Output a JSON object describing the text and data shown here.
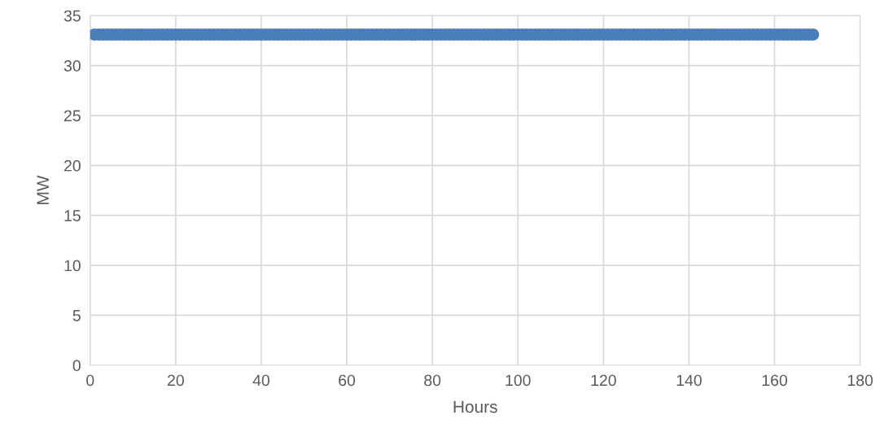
{
  "chart_data": {
    "type": "scatter",
    "xlabel": "Hours",
    "ylabel": "MW",
    "xlim": [
      0,
      180
    ],
    "xticks": [
      0,
      20,
      40,
      60,
      80,
      100,
      120,
      140,
      160,
      180
    ],
    "ylim": [
      0,
      35
    ],
    "yticks": [
      0,
      5,
      10,
      15,
      20,
      25,
      30,
      35
    ],
    "grid": true,
    "marker": "circle",
    "series": [
      {
        "color": "#4a7ebb",
        "x": [
          1,
          2,
          3,
          4,
          5,
          6,
          7,
          8,
          9,
          10,
          11,
          12,
          13,
          14,
          15,
          16,
          17,
          18,
          19,
          20,
          21,
          22,
          23,
          24,
          25,
          26,
          27,
          28,
          29,
          30,
          31,
          32,
          33,
          34,
          35,
          36,
          37,
          38,
          39,
          40,
          41,
          42,
          43,
          44,
          45,
          46,
          47,
          48,
          49,
          50,
          51,
          52,
          53,
          54,
          55,
          56,
          57,
          58,
          59,
          60,
          61,
          62,
          63,
          64,
          65,
          66,
          67,
          68,
          69,
          70,
          71,
          72,
          73,
          74,
          75,
          76,
          77,
          78,
          79,
          80,
          81,
          82,
          83,
          84,
          85,
          86,
          87,
          88,
          89,
          90,
          91,
          92,
          93,
          94,
          95,
          96,
          97,
          98,
          99,
          100,
          101,
          102,
          103,
          104,
          105,
          106,
          107,
          108,
          109,
          110,
          111,
          112,
          113,
          114,
          115,
          116,
          117,
          118,
          119,
          120,
          121,
          122,
          123,
          124,
          125,
          126,
          127,
          128,
          129,
          130,
          131,
          132,
          133,
          134,
          135,
          136,
          137,
          138,
          139,
          140,
          141,
          142,
          143,
          144,
          145,
          146,
          147,
          148,
          149,
          150,
          151,
          152,
          153,
          154,
          155,
          156,
          157,
          158,
          159,
          160,
          161,
          162,
          163,
          164,
          165,
          166,
          167,
          168,
          169
        ],
        "values": [
          33.1,
          33.1,
          33.1,
          33.1,
          33.1,
          33.1,
          33.1,
          33.1,
          33.1,
          33.1,
          33.1,
          33.1,
          33.1,
          33.1,
          33.1,
          33.1,
          33.1,
          33.1,
          33.1,
          33.1,
          33.1,
          33.1,
          33.1,
          33.1,
          33.1,
          33.1,
          33.1,
          33.1,
          33.1,
          33.1,
          33.1,
          33.1,
          33.1,
          33.1,
          33.1,
          33.1,
          33.1,
          33.1,
          33.1,
          33.1,
          33.1,
          33.1,
          33.1,
          33.1,
          33.1,
          33.1,
          33.1,
          33.1,
          33.1,
          33.1,
          33.1,
          33.1,
          33.1,
          33.1,
          33.1,
          33.1,
          33.1,
          33.1,
          33.1,
          33.1,
          33.1,
          33.1,
          33.1,
          33.1,
          33.1,
          33.1,
          33.1,
          33.1,
          33.1,
          33.1,
          33.1,
          33.1,
          33.1,
          33.1,
          33.1,
          33.1,
          33.1,
          33.1,
          33.1,
          33.1,
          33.1,
          33.1,
          33.1,
          33.1,
          33.1,
          33.1,
          33.1,
          33.1,
          33.1,
          33.1,
          33.1,
          33.1,
          33.1,
          33.1,
          33.1,
          33.1,
          33.1,
          33.1,
          33.1,
          33.1,
          33.1,
          33.1,
          33.1,
          33.1,
          33.1,
          33.1,
          33.1,
          33.1,
          33.1,
          33.1,
          33.1,
          33.1,
          33.1,
          33.1,
          33.1,
          33.1,
          33.1,
          33.1,
          33.1,
          33.1,
          33.1,
          33.1,
          33.1,
          33.1,
          33.1,
          33.1,
          33.1,
          33.1,
          33.1,
          33.1,
          33.1,
          33.1,
          33.1,
          33.1,
          33.1,
          33.1,
          33.1,
          33.1,
          33.1,
          33.1,
          33.1,
          33.1,
          33.1,
          33.1,
          33.1,
          33.1,
          33.1,
          33.1,
          33.1,
          33.1,
          33.1,
          33.1,
          33.1,
          33.1,
          33.1,
          33.1,
          33.1,
          33.1,
          33.1,
          33.1,
          33.1,
          33.1,
          33.1,
          33.1,
          33.1,
          33.1,
          33.1,
          33.1,
          33.1
        ]
      }
    ]
  }
}
